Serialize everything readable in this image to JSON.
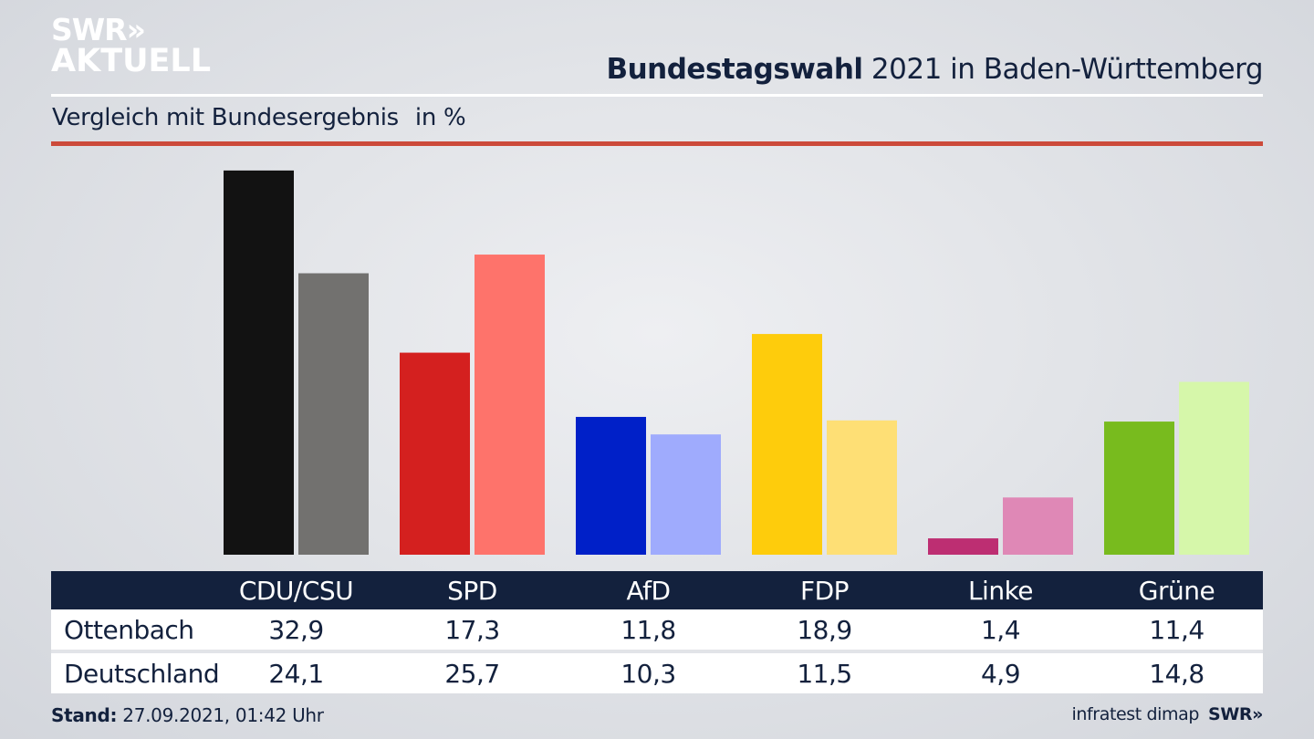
{
  "logo": {
    "line1": "SWR»",
    "line2": "AKTUELL"
  },
  "header": {
    "title_bold": "Bundestagswahl",
    "title_rest": " 2021 in Baden-Württemberg",
    "subtitle": "Vergleich mit Bundesergebnis",
    "unit": "in %"
  },
  "chart_data": {
    "type": "bar",
    "title": "Bundestagswahl 2021 in Baden-Württemberg",
    "subtitle": "Vergleich mit Bundesergebnis",
    "ylabel": "in %",
    "xlabel": "",
    "ylim": [
      0,
      35
    ],
    "grid": false,
    "categories": [
      "CDU/CSU",
      "SPD",
      "AfD",
      "FDP",
      "Linke",
      "Grüne"
    ],
    "series": [
      {
        "name": "Ottenbach",
        "values": [
          32.9,
          17.3,
          11.8,
          18.9,
          1.4,
          11.4
        ],
        "labels": [
          "32,9",
          "17,3",
          "11,8",
          "18,9",
          "1,4",
          "11,4"
        ],
        "colors": [
          "#121212",
          "#d4201f",
          "#0020c8",
          "#fecc0c",
          "#bd2e72",
          "#78bb1e"
        ]
      },
      {
        "name": "Deutschland",
        "values": [
          24.1,
          25.7,
          10.3,
          11.5,
          4.9,
          14.8
        ],
        "labels": [
          "24,1",
          "25,7",
          "10,3",
          "11,5",
          "4,9",
          "14,8"
        ],
        "colors": [
          "#72716f",
          "#fe736b",
          "#9fabfd",
          "#fedf75",
          "#df88b6",
          "#d6f7aa"
        ]
      }
    ]
  },
  "footer": {
    "stand_label": "Stand:",
    "stand_value": " 27.09.2021, 01:42 Uhr",
    "source": "infratest dimap",
    "brand": "SWR»"
  }
}
